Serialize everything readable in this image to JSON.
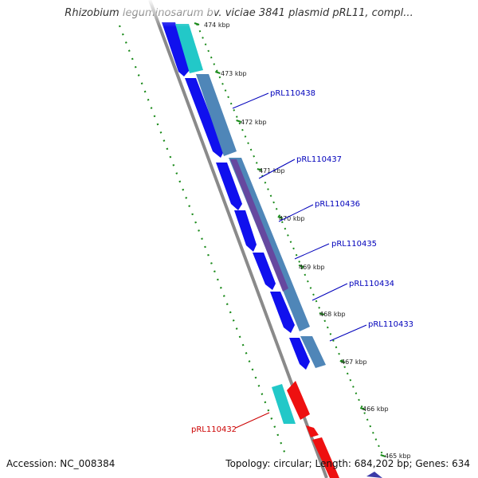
{
  "title": "Rhizobium leguminosarum bv. viciae 3841 plasmid pRL11, compl...",
  "footer": {
    "accession": "Accession: NC_008384",
    "topology": "Topology: circular; Length: 684,202 bp; Genes: 634"
  },
  "colors": {
    "forward_cds": "#1010ee",
    "forward_secondary": "#4f86b8",
    "forward_tertiary": "#6a3d9a",
    "cyan_feature": "#22c8c8",
    "reverse_cds": "#ee1010",
    "backbone": "#8a8a8a",
    "tick": "#1a8a1a",
    "forward_label": "#0000bb",
    "reverse_label": "#cc0000"
  },
  "ticks": [
    {
      "label": "474 kbp"
    },
    {
      "label": "473 kbp"
    },
    {
      "label": "472 kbp"
    },
    {
      "label": "471 kbp"
    },
    {
      "label": "470 kbp"
    },
    {
      "label": "469 kbp"
    },
    {
      "label": "468 kbp"
    },
    {
      "label": "467 kbp"
    },
    {
      "label": "466 kbp"
    },
    {
      "label": "465 kbp"
    }
  ],
  "gene_labels": [
    {
      "name": "pRL110438",
      "strand": "forward"
    },
    {
      "name": "pRL110437",
      "strand": "forward"
    },
    {
      "name": "pRL110436",
      "strand": "forward"
    },
    {
      "name": "pRL110435",
      "strand": "forward"
    },
    {
      "name": "pRL110434",
      "strand": "forward"
    },
    {
      "name": "pRL110433",
      "strand": "forward"
    },
    {
      "name": "pRL110432",
      "strand": "reverse"
    }
  ]
}
